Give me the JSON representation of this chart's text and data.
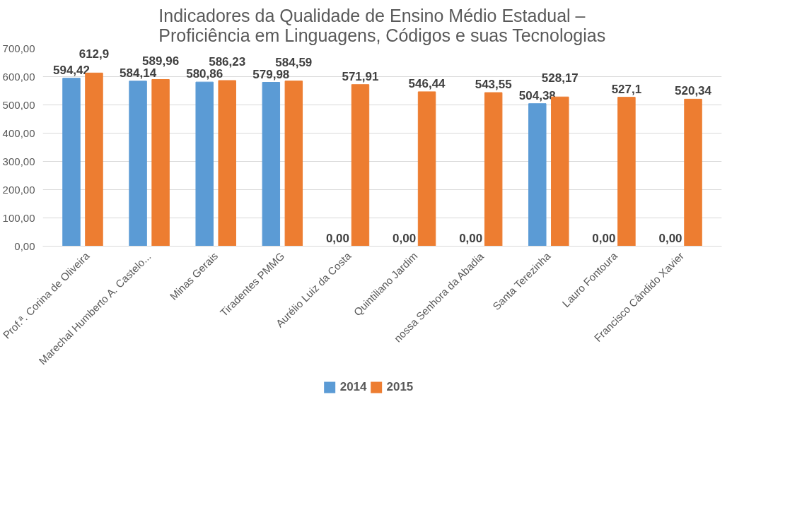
{
  "chart_data": {
    "type": "bar",
    "title": "Indicadores da Qualidade de Ensino Médio Estadual –\nProficiência em Linguagens, Códigos e suas Tecnologias",
    "categories": [
      "Prof.ª. Corina de Oliveira",
      "Marechal Humberto A. Castelo...",
      "Minas Gerais",
      "Tiradentes PMMG",
      "Aurélio Luiz da Costa",
      "Quintiliano Jardim",
      "nossa Senhora da Abadia",
      "Santa Terezinha",
      "Lauro Fontoura",
      "Francisco Cândido Xavier"
    ],
    "series": [
      {
        "name": "2014",
        "color": "#5b9bd5",
        "values": [
          594.42,
          584.14,
          580.86,
          579.98,
          0,
          0,
          0,
          504.38,
          0,
          0
        ],
        "value_labels": [
          "594,42",
          "584,14",
          "580,86",
          "579,98",
          "0,00",
          "0,00",
          "0,00",
          "504,38",
          "0,00",
          "0,00"
        ]
      },
      {
        "name": "2015",
        "color": "#ed7d31",
        "values": [
          612.9,
          589.96,
          586.23,
          584.59,
          571.91,
          546.44,
          543.55,
          528.17,
          527.1,
          520.34
        ],
        "value_labels": [
          "612,9",
          "589,96",
          "586,23",
          "584,59",
          "571,91",
          "546,44",
          "543,55",
          "528,17",
          "527,1",
          "520,34"
        ]
      }
    ],
    "ylim": [
      0,
      700
    ],
    "yticks": [
      {
        "value": 0,
        "label": "0,00"
      },
      {
        "value": 100,
        "label": "100,00"
      },
      {
        "value": 200,
        "label": "200,00"
      },
      {
        "value": 300,
        "label": "300,00"
      },
      {
        "value": 400,
        "label": "400,00"
      },
      {
        "value": 500,
        "label": "500,00"
      },
      {
        "value": 600,
        "label": "600,00"
      },
      {
        "value": 700,
        "label": "700,00"
      }
    ],
    "grid": "y",
    "legend": "bottom"
  }
}
